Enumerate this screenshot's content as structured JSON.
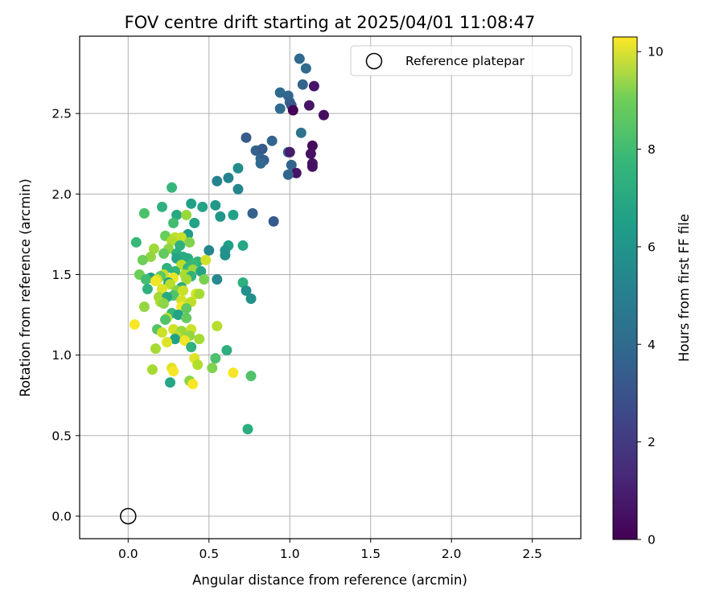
{
  "chart_data": {
    "type": "scatter",
    "title": "FOV centre drift starting at 2025/04/01 11:08:47",
    "xlabel": "Angular distance from reference (arcmin)",
    "ylabel": "Rotation from reference (arcmin)",
    "xlim": [
      -0.3,
      2.8
    ],
    "ylim": [
      -0.14,
      2.98
    ],
    "xticks": [
      "0.0",
      "0.5",
      "1.0",
      "1.5",
      "2.0",
      "2.5"
    ],
    "yticks": [
      "0.0",
      "0.5",
      "1.0",
      "1.5",
      "2.0",
      "2.5"
    ],
    "grid": true,
    "legend": {
      "position": "top-right",
      "entries": [
        "Reference platepar"
      ]
    },
    "reference_point": {
      "x": 0.0,
      "y": 0.0
    },
    "colorbar": {
      "label": "Hours from first FF file",
      "range": [
        0,
        10.3
      ],
      "ticks": [
        "0",
        "2",
        "4",
        "6",
        "8",
        "10"
      ],
      "colormap": "viridis"
    },
    "points": [
      {
        "x": 1.06,
        "y": 2.84,
        "h": 3.5
      },
      {
        "x": 1.1,
        "y": 2.78,
        "h": 3.6
      },
      {
        "x": 1.08,
        "y": 2.68,
        "h": 3.3
      },
      {
        "x": 1.15,
        "y": 2.67,
        "h": 0.6
      },
      {
        "x": 0.94,
        "y": 2.63,
        "h": 3.5
      },
      {
        "x": 0.99,
        "y": 2.61,
        "h": 3.4
      },
      {
        "x": 1.0,
        "y": 2.57,
        "h": 3.2
      },
      {
        "x": 1.01,
        "y": 2.55,
        "h": 2.8
      },
      {
        "x": 0.94,
        "y": 2.53,
        "h": 3.6
      },
      {
        "x": 1.02,
        "y": 2.52,
        "h": 0.1
      },
      {
        "x": 1.12,
        "y": 2.55,
        "h": 0.6
      },
      {
        "x": 1.21,
        "y": 2.49,
        "h": 0.4
      },
      {
        "x": 1.07,
        "y": 2.38,
        "h": 3.9
      },
      {
        "x": 0.73,
        "y": 2.35,
        "h": 3.0
      },
      {
        "x": 0.89,
        "y": 2.33,
        "h": 3.3
      },
      {
        "x": 1.14,
        "y": 2.3,
        "h": 0.3
      },
      {
        "x": 0.79,
        "y": 2.27,
        "h": 3.2
      },
      {
        "x": 0.83,
        "y": 2.28,
        "h": 2.9
      },
      {
        "x": 0.99,
        "y": 2.26,
        "h": 3.6
      },
      {
        "x": 1.0,
        "y": 2.26,
        "h": 0.8
      },
      {
        "x": 1.13,
        "y": 2.25,
        "h": 0.5
      },
      {
        "x": 0.82,
        "y": 2.22,
        "h": 3.4
      },
      {
        "x": 0.84,
        "y": 2.21,
        "h": 3.1
      },
      {
        "x": 0.82,
        "y": 2.19,
        "h": 3.5
      },
      {
        "x": 1.01,
        "y": 2.18,
        "h": 3.3
      },
      {
        "x": 1.14,
        "y": 2.19,
        "h": 0.5
      },
      {
        "x": 1.14,
        "y": 2.17,
        "h": 0.4
      },
      {
        "x": 0.68,
        "y": 2.16,
        "h": 5.0
      },
      {
        "x": 1.04,
        "y": 2.13,
        "h": 0.6
      },
      {
        "x": 0.99,
        "y": 2.12,
        "h": 3.4
      },
      {
        "x": 0.62,
        "y": 2.1,
        "h": 4.6
      },
      {
        "x": 0.55,
        "y": 2.08,
        "h": 4.6
      },
      {
        "x": 0.68,
        "y": 2.03,
        "h": 4.7
      },
      {
        "x": 0.27,
        "y": 2.04,
        "h": 6.8
      },
      {
        "x": 0.39,
        "y": 1.94,
        "h": 5.8
      },
      {
        "x": 0.54,
        "y": 1.93,
        "h": 5.5
      },
      {
        "x": 0.21,
        "y": 1.92,
        "h": 6.6
      },
      {
        "x": 0.46,
        "y": 1.92,
        "h": 6.0
      },
      {
        "x": 0.77,
        "y": 1.88,
        "h": 3.2
      },
      {
        "x": 0.1,
        "y": 1.88,
        "h": 7.3
      },
      {
        "x": 0.3,
        "y": 1.87,
        "h": 6.2
      },
      {
        "x": 0.36,
        "y": 1.87,
        "h": 8.7
      },
      {
        "x": 0.57,
        "y": 1.86,
        "h": 5.4
      },
      {
        "x": 0.65,
        "y": 1.87,
        "h": 5.9
      },
      {
        "x": 0.9,
        "y": 1.83,
        "h": 2.9
      },
      {
        "x": 0.28,
        "y": 1.82,
        "h": 7.1
      },
      {
        "x": 0.41,
        "y": 1.82,
        "h": 5.9
      },
      {
        "x": 0.37,
        "y": 1.75,
        "h": 5.6
      },
      {
        "x": 0.23,
        "y": 1.74,
        "h": 7.9
      },
      {
        "x": 0.29,
        "y": 1.73,
        "h": 9.3
      },
      {
        "x": 0.33,
        "y": 1.73,
        "h": 9.4
      },
      {
        "x": 0.27,
        "y": 1.71,
        "h": 9.1
      },
      {
        "x": 0.05,
        "y": 1.7,
        "h": 6.9
      },
      {
        "x": 0.38,
        "y": 1.7,
        "h": 8.3
      },
      {
        "x": 0.32,
        "y": 1.68,
        "h": 6.6
      },
      {
        "x": 0.62,
        "y": 1.68,
        "h": 5.8
      },
      {
        "x": 0.71,
        "y": 1.68,
        "h": 6.1
      },
      {
        "x": 0.16,
        "y": 1.66,
        "h": 8.8
      },
      {
        "x": 0.25,
        "y": 1.66,
        "h": 8.5
      },
      {
        "x": 0.5,
        "y": 1.65,
        "h": 4.7
      },
      {
        "x": 0.22,
        "y": 1.63,
        "h": 7.8
      },
      {
        "x": 0.3,
        "y": 1.63,
        "h": 6.5
      },
      {
        "x": 0.6,
        "y": 1.65,
        "h": 5.3
      },
      {
        "x": 0.6,
        "y": 1.62,
        "h": 5.2
      },
      {
        "x": 0.14,
        "y": 1.61,
        "h": 8.6
      },
      {
        "x": 0.34,
        "y": 1.61,
        "h": 6.4
      },
      {
        "x": 0.37,
        "y": 1.6,
        "h": 6.3
      },
      {
        "x": 0.3,
        "y": 1.6,
        "h": 6.0
      },
      {
        "x": 0.09,
        "y": 1.59,
        "h": 8.0
      },
      {
        "x": 0.43,
        "y": 1.58,
        "h": 6.7
      },
      {
        "x": 0.48,
        "y": 1.59,
        "h": 9.6
      },
      {
        "x": 0.4,
        "y": 1.57,
        "h": 6.9
      },
      {
        "x": 0.33,
        "y": 1.56,
        "h": 9.2
      },
      {
        "x": 0.37,
        "y": 1.54,
        "h": 6.8
      },
      {
        "x": 0.24,
        "y": 1.54,
        "h": 6.5
      },
      {
        "x": 0.4,
        "y": 1.53,
        "h": 8.7
      },
      {
        "x": 0.29,
        "y": 1.52,
        "h": 6.7
      },
      {
        "x": 0.45,
        "y": 1.52,
        "h": 6.0
      },
      {
        "x": 0.22,
        "y": 1.5,
        "h": 9.4
      },
      {
        "x": 0.35,
        "y": 1.5,
        "h": 9.0
      },
      {
        "x": 0.07,
        "y": 1.5,
        "h": 8.0
      },
      {
        "x": 0.2,
        "y": 1.49,
        "h": 7.6
      },
      {
        "x": 0.28,
        "y": 1.48,
        "h": 10.0
      },
      {
        "x": 0.39,
        "y": 1.49,
        "h": 6.6
      },
      {
        "x": 0.14,
        "y": 1.48,
        "h": 5.6
      },
      {
        "x": 0.11,
        "y": 1.47,
        "h": 7.1
      },
      {
        "x": 0.18,
        "y": 1.47,
        "h": 9.4
      },
      {
        "x": 0.36,
        "y": 1.47,
        "h": 8.9
      },
      {
        "x": 0.47,
        "y": 1.47,
        "h": 8.2
      },
      {
        "x": 0.55,
        "y": 1.47,
        "h": 4.9
      },
      {
        "x": 0.17,
        "y": 1.46,
        "h": 10.1
      },
      {
        "x": 0.25,
        "y": 1.45,
        "h": 5.8
      },
      {
        "x": 0.71,
        "y": 1.45,
        "h": 6.5
      },
      {
        "x": 0.26,
        "y": 1.44,
        "h": 9.2
      },
      {
        "x": 0.33,
        "y": 1.42,
        "h": 6.3
      },
      {
        "x": 0.21,
        "y": 1.41,
        "h": 9.8
      },
      {
        "x": 0.12,
        "y": 1.41,
        "h": 6.6
      },
      {
        "x": 0.3,
        "y": 1.4,
        "h": 8.4
      },
      {
        "x": 0.34,
        "y": 1.4,
        "h": 9.5
      },
      {
        "x": 0.73,
        "y": 1.4,
        "h": 5.1
      },
      {
        "x": 0.42,
        "y": 1.38,
        "h": 9.7
      },
      {
        "x": 0.44,
        "y": 1.38,
        "h": 8.9
      },
      {
        "x": 0.28,
        "y": 1.37,
        "h": 7.4
      },
      {
        "x": 0.19,
        "y": 1.36,
        "h": 8.9
      },
      {
        "x": 0.24,
        "y": 1.36,
        "h": 6.2
      },
      {
        "x": 0.76,
        "y": 1.35,
        "h": 5.2
      },
      {
        "x": 0.33,
        "y": 1.34,
        "h": 9.6
      },
      {
        "x": 0.2,
        "y": 1.33,
        "h": 9.0
      },
      {
        "x": 0.39,
        "y": 1.33,
        "h": 9.3
      },
      {
        "x": 0.22,
        "y": 1.32,
        "h": 8.5
      },
      {
        "x": 0.33,
        "y": 1.3,
        "h": 10.2
      },
      {
        "x": 0.1,
        "y": 1.3,
        "h": 8.6
      },
      {
        "x": 0.36,
        "y": 1.29,
        "h": 7.7
      },
      {
        "x": 0.27,
        "y": 1.26,
        "h": 6.9
      },
      {
        "x": 0.31,
        "y": 1.25,
        "h": 5.9
      },
      {
        "x": 0.24,
        "y": 1.23,
        "h": 9.4
      },
      {
        "x": 0.36,
        "y": 1.23,
        "h": 7.8
      },
      {
        "x": 0.23,
        "y": 1.22,
        "h": 7.4
      },
      {
        "x": 0.04,
        "y": 1.19,
        "h": 10.2
      },
      {
        "x": 0.55,
        "y": 1.18,
        "h": 9.2
      },
      {
        "x": 0.18,
        "y": 1.16,
        "h": 7.5
      },
      {
        "x": 0.28,
        "y": 1.16,
        "h": 9.6
      },
      {
        "x": 0.33,
        "y": 1.15,
        "h": 8.7
      },
      {
        "x": 0.39,
        "y": 1.16,
        "h": 9.5
      },
      {
        "x": 0.21,
        "y": 1.14,
        "h": 9.5
      },
      {
        "x": 0.3,
        "y": 1.12,
        "h": 9.2
      },
      {
        "x": 0.38,
        "y": 1.12,
        "h": 8.6
      },
      {
        "x": 0.44,
        "y": 1.1,
        "h": 8.9
      },
      {
        "x": 0.29,
        "y": 1.1,
        "h": 5.8
      },
      {
        "x": 0.35,
        "y": 1.09,
        "h": 10.1
      },
      {
        "x": 0.24,
        "y": 1.08,
        "h": 9.8
      },
      {
        "x": 0.39,
        "y": 1.05,
        "h": 6.6
      },
      {
        "x": 0.17,
        "y": 1.04,
        "h": 8.9
      },
      {
        "x": 0.61,
        "y": 1.03,
        "h": 6.5
      },
      {
        "x": 0.54,
        "y": 0.98,
        "h": 7.3
      },
      {
        "x": 0.41,
        "y": 0.98,
        "h": 9.8
      },
      {
        "x": 0.43,
        "y": 0.94,
        "h": 9.1
      },
      {
        "x": 0.15,
        "y": 0.91,
        "h": 8.9
      },
      {
        "x": 0.27,
        "y": 0.92,
        "h": 9.8
      },
      {
        "x": 0.28,
        "y": 0.9,
        "h": 10.2
      },
      {
        "x": 0.52,
        "y": 0.92,
        "h": 8.3
      },
      {
        "x": 0.65,
        "y": 0.89,
        "h": 10.2
      },
      {
        "x": 0.76,
        "y": 0.87,
        "h": 7.4
      },
      {
        "x": 0.38,
        "y": 0.84,
        "h": 8.5
      },
      {
        "x": 0.26,
        "y": 0.83,
        "h": 6.1
      },
      {
        "x": 0.4,
        "y": 0.82,
        "h": 10.2
      },
      {
        "x": 0.74,
        "y": 0.54,
        "h": 6.4
      }
    ]
  }
}
